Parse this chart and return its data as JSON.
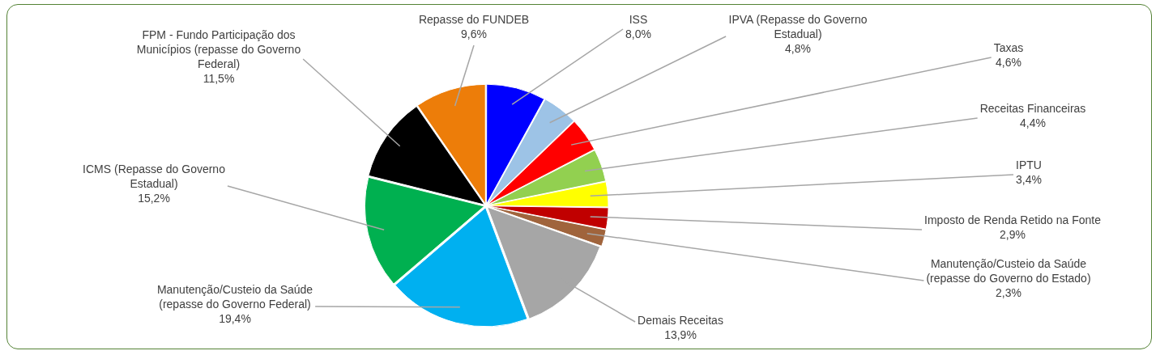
{
  "chart_data": {
    "type": "pie",
    "categories": [
      "ISS",
      "IPVA (Repasse do Governo Estadual)",
      "Taxas",
      "Receitas Financeiras",
      "IPTU",
      "Imposto de Renda Retido na Fonte",
      "Manutenção/Custeio da Saúde (repasse do Governo do Estado)",
      "Demais Receitas",
      "Manutenção/Custeio da Saúde (repasse do Governo Federal)",
      "ICMS (Repasse do Governo Estadual)",
      "FPM - Fundo Participação dos Municípios (repasse do Governo Federal)",
      "Repasse do FUNDEB"
    ],
    "values": [
      8.0,
      4.8,
      4.6,
      4.4,
      3.4,
      2.9,
      2.3,
      13.9,
      19.4,
      15.2,
      11.5,
      9.6
    ],
    "value_labels": [
      "8,0%",
      "4,8%",
      "4,6%",
      "4,4%",
      "3,4%",
      "2,9%",
      "2,3%",
      "13,9%",
      "19,4%",
      "15,2%",
      "11,5%",
      "9,6%"
    ],
    "colors": [
      "#0000ff",
      "#9dc3e6",
      "#ff0000",
      "#92d050",
      "#ffff00",
      "#c00000",
      "#a0643c",
      "#a6a6a6",
      "#00b0f0",
      "#00b050",
      "#000000",
      "#ed7d09"
    ],
    "legend": false
  }
}
